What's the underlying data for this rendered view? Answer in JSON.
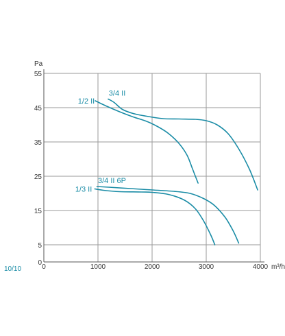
{
  "page_code": "10/10",
  "colors": {
    "curve": "#1a8ca6",
    "grid": "#9a9a9a",
    "axis": "#555555",
    "text": "#333333"
  },
  "chart_data": {
    "type": "line",
    "y_unit": "Pa",
    "x_unit": "m³/h",
    "xlim": [
      0,
      4000
    ],
    "ylim": [
      0,
      55
    ],
    "x_ticks": [
      0,
      1000,
      2000,
      3000,
      4000
    ],
    "y_ticks": [
      0,
      5,
      15,
      25,
      35,
      45,
      55
    ],
    "grid": true,
    "series": [
      {
        "name": "3/4 II",
        "points": [
          [
            1190,
            47.5
          ],
          [
            1300,
            46.5
          ],
          [
            1450,
            44.5
          ],
          [
            1650,
            43.3
          ],
          [
            1900,
            42.5
          ],
          [
            2200,
            41.8
          ],
          [
            2500,
            41.7
          ],
          [
            2800,
            41.6
          ],
          [
            3000,
            41.2
          ],
          [
            3200,
            40
          ],
          [
            3400,
            37.5
          ],
          [
            3600,
            33
          ],
          [
            3800,
            27
          ],
          [
            3950,
            21
          ]
        ],
        "label_point": [
          1200,
          49.3
        ]
      },
      {
        "name": "1/2 II",
        "points": [
          [
            950,
            47
          ],
          [
            1150,
            45.5
          ],
          [
            1400,
            43.8
          ],
          [
            1650,
            42.3
          ],
          [
            1900,
            41
          ],
          [
            2100,
            39.5
          ],
          [
            2300,
            37.5
          ],
          [
            2500,
            34.5
          ],
          [
            2650,
            31
          ],
          [
            2750,
            27
          ],
          [
            2850,
            23
          ]
        ],
        "label_point": [
          630,
          47
        ]
      },
      {
        "name": "3/4 II 6P",
        "points": [
          [
            980,
            22
          ],
          [
            1200,
            21.8
          ],
          [
            1600,
            21.4
          ],
          [
            2000,
            21
          ],
          [
            2400,
            20.6
          ],
          [
            2700,
            20
          ],
          [
            2950,
            18.5
          ],
          [
            3150,
            16.5
          ],
          [
            3350,
            13
          ],
          [
            3500,
            9
          ],
          [
            3600,
            5.5
          ]
        ],
        "label_point": [
          1000,
          23.8
        ]
      },
      {
        "name": "1/3 II",
        "points": [
          [
            940,
            21.3
          ],
          [
            1100,
            20.9
          ],
          [
            1400,
            20.5
          ],
          [
            1800,
            20.4
          ],
          [
            2000,
            20.3
          ],
          [
            2300,
            19.7
          ],
          [
            2600,
            18
          ],
          [
            2800,
            15.5
          ],
          [
            2950,
            12
          ],
          [
            3080,
            8
          ],
          [
            3160,
            5
          ]
        ],
        "label_point": [
          580,
          21.3
        ]
      }
    ]
  }
}
